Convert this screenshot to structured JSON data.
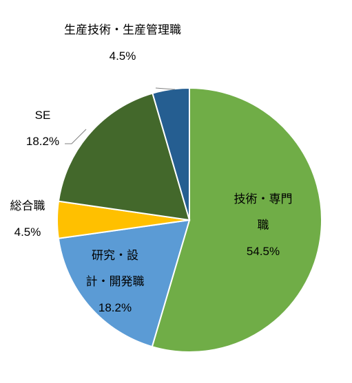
{
  "chart_data": {
    "type": "pie",
    "categories": [
      "技術・専門職",
      "研究・設計・開発職",
      "総合職",
      "SE",
      "生産技術・生産管理職"
    ],
    "values": [
      54.5,
      18.2,
      4.5,
      18.2,
      4.5
    ],
    "value_labels": [
      "54.5%",
      "18.2%",
      "4.5%",
      "18.2%",
      "4.5%"
    ],
    "colors": [
      "#70ad47",
      "#5b9bd5",
      "#ffc000",
      "#43682b",
      "#255e91"
    ]
  }
}
